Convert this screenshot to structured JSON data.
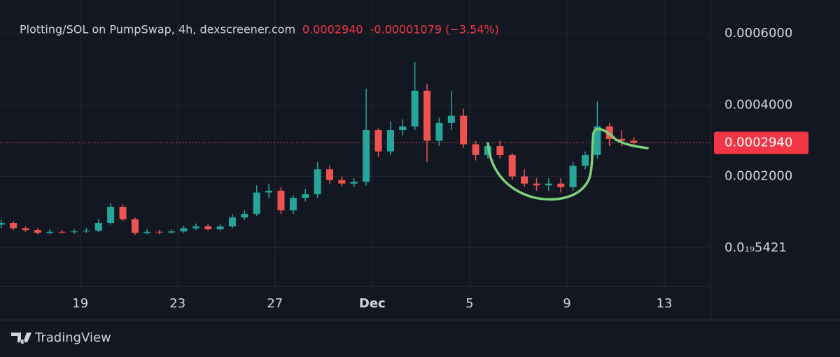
{
  "chart_data": {
    "type": "candlestick",
    "title": "Plotting/SOL on PumpSwap, 4h, dexscreener.com",
    "change": "-0.00001079 (−3.54%)",
    "branding": "TradingView",
    "last_price": {
      "value": 0.000294,
      "label": "0.0002940"
    },
    "x": [
      15.75,
      16.25,
      16.75,
      17.25,
      17.75,
      18.25,
      18.75,
      19.25,
      19.75,
      20.25,
      20.75,
      21.25,
      21.75,
      22.25,
      22.75,
      23.25,
      23.75,
      24.25,
      24.75,
      25.25,
      25.75,
      26.25,
      26.75,
      27.25,
      27.75,
      28.25,
      28.75,
      29.25,
      29.75,
      30.25,
      30.75,
      31.25,
      31.75,
      32.25,
      32.75,
      33.25,
      33.75,
      34.25,
      34.75,
      35.25,
      35.75,
      36.25,
      36.75,
      37.25,
      37.75,
      38.25,
      38.75,
      39.25,
      39.75,
      40.25,
      40.75,
      41.25,
      41.75
    ],
    "open": [
      6.5e-05,
      7e-05,
      5.5e-05,
      5e-05,
      4.2e-05,
      4.5e-05,
      4.4e-05,
      4.6e-05,
      4.8e-05,
      7e-05,
      0.000115,
      8e-05,
      4.2e-05,
      4.5e-05,
      4.3e-05,
      4.6e-05,
      5.5e-05,
      6e-05,
      5.2e-05,
      6e-05,
      8.5e-05,
      9.5e-05,
      0.000155,
      0.00016,
      0.000105,
      0.00014,
      0.00015,
      0.00022,
      0.00019,
      0.00018,
      0.000185,
      0.00033,
      0.00027,
      0.00033,
      0.00034,
      0.00044,
      0.0003,
      0.00035,
      0.00037,
      0.00029,
      0.00026,
      0.000285,
      0.00026,
      0.0002,
      0.00018,
      0.000175,
      0.00018,
      0.00017,
      0.00023,
      0.00026,
      0.00034,
      0.000305,
      0.0003
    ],
    "high": [
      7.8e-05,
      7.5e-05,
      6e-05,
      5.5e-05,
      5.2e-05,
      5e-05,
      5.2e-05,
      5.5e-05,
      8e-05,
      0.000125,
      0.000122,
      8.5e-05,
      5.2e-05,
      5e-05,
      5.2e-05,
      6.2e-05,
      6.8e-05,
      6.6e-05,
      6.6e-05,
      9.5e-05,
      0.000105,
      0.000175,
      0.00018,
      0.00017,
      0.000148,
      0.000165,
      0.00024,
      0.00023,
      0.0002,
      0.000195,
      0.000445,
      0.000335,
      0.000355,
      0.00036,
      0.00052,
      0.00046,
      0.000365,
      0.00044,
      0.00039,
      0.0003,
      0.000295,
      0.0003,
      0.000265,
      0.00022,
      0.000195,
      0.000195,
      0.000195,
      0.00024,
      0.00027,
      0.00041,
      0.00035,
      0.00033,
      0.00031
    ],
    "low": [
      5.5e-05,
      5e-05,
      4.5e-05,
      3.8e-05,
      3.8e-05,
      4e-05,
      4e-05,
      4.2e-05,
      4.4e-05,
      6.5e-05,
      7.5e-05,
      3.6e-05,
      3.8e-05,
      3.8e-05,
      4e-05,
      4.2e-05,
      5e-05,
      4.8e-05,
      4.8e-05,
      5.5e-05,
      7.8e-05,
      9e-05,
      0.00014,
      9.5e-05,
      9.5e-05,
      0.00013,
      0.00014,
      0.00018,
      0.000172,
      0.00017,
      0.000175,
      0.000255,
      0.00026,
      0.000315,
      0.00033,
      0.00024,
      0.000285,
      0.00033,
      0.00028,
      0.000245,
      0.00025,
      0.00025,
      0.00019,
      0.00017,
      0.00016,
      0.00016,
      0.000155,
      0.00016,
      0.00022,
      0.00025,
      0.000285,
      0.000285,
      0.000285
    ],
    "close": [
      7e-05,
      5.5e-05,
      5e-05,
      4.2e-05,
      4.5e-05,
      4.4e-05,
      4.6e-05,
      4.8e-05,
      7e-05,
      0.000115,
      8e-05,
      4.2e-05,
      4.5e-05,
      4.3e-05,
      4.6e-05,
      5.5e-05,
      6e-05,
      5.2e-05,
      6e-05,
      8.5e-05,
      9.5e-05,
      0.000155,
      0.00016,
      0.000105,
      0.00014,
      0.00015,
      0.00022,
      0.00019,
      0.00018,
      0.000185,
      0.00033,
      0.00027,
      0.00033,
      0.00034,
      0.00044,
      0.0003,
      0.00035,
      0.00037,
      0.00029,
      0.00026,
      0.000285,
      0.00026,
      0.0002,
      0.00018,
      0.000175,
      0.00018,
      0.00017,
      0.00023,
      0.00026,
      0.00034,
      0.000305,
      0.0003,
      0.000294
    ],
    "up_color": "#26a69a",
    "down_color": "#ef5350",
    "xlim": [
      15.7,
      44.9
    ],
    "xticks": [
      19,
      23,
      27,
      {
        "value": 31,
        "label": "Dec"
      },
      {
        "value": 35,
        "label": "5"
      },
      {
        "value": 39,
        "label": "9"
      },
      {
        "value": 43,
        "label": "13"
      }
    ],
    "ylim": [
      -0.000108,
      0.000694
    ],
    "yticks": [
      {
        "value": 5.421e-20,
        "label": "0.0₁₉5421"
      },
      {
        "value": 0.0002,
        "label": "0.0002000"
      },
      {
        "value": 0.0004,
        "label": "0.0004000"
      },
      {
        "value": 0.0006,
        "label": "0.0006000"
      }
    ],
    "grid": true
  }
}
